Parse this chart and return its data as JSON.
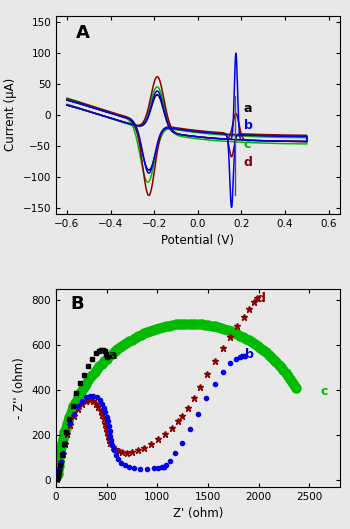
{
  "panel_A_label": "A",
  "panel_B_label": "B",
  "cv_xlim": [
    -0.65,
    0.65
  ],
  "cv_ylim": [
    -160,
    160
  ],
  "cv_xticks": [
    -0.6,
    -0.4,
    -0.2,
    0.0,
    0.2,
    0.4,
    0.6
  ],
  "cv_yticks": [
    -150,
    -100,
    -50,
    0,
    50,
    100,
    150
  ],
  "cv_xlabel": "Potential (V)",
  "cv_ylabel": "Current (μA)",
  "eis_xlim": [
    0,
    2800
  ],
  "eis_ylim": [
    -30,
    850
  ],
  "eis_xticks": [
    0,
    500,
    1000,
    1500,
    2000,
    2500
  ],
  "eis_yticks": [
    0,
    200,
    400,
    600,
    800
  ],
  "eis_xlabel": "Z' (ohm)",
  "eis_ylabel": "- Z'' (ohm)",
  "colors": {
    "a": "#000000",
    "b": "#0000ee",
    "c": "#00bb00",
    "d": "#8b0000"
  },
  "bg_color": "#e8e8e8"
}
